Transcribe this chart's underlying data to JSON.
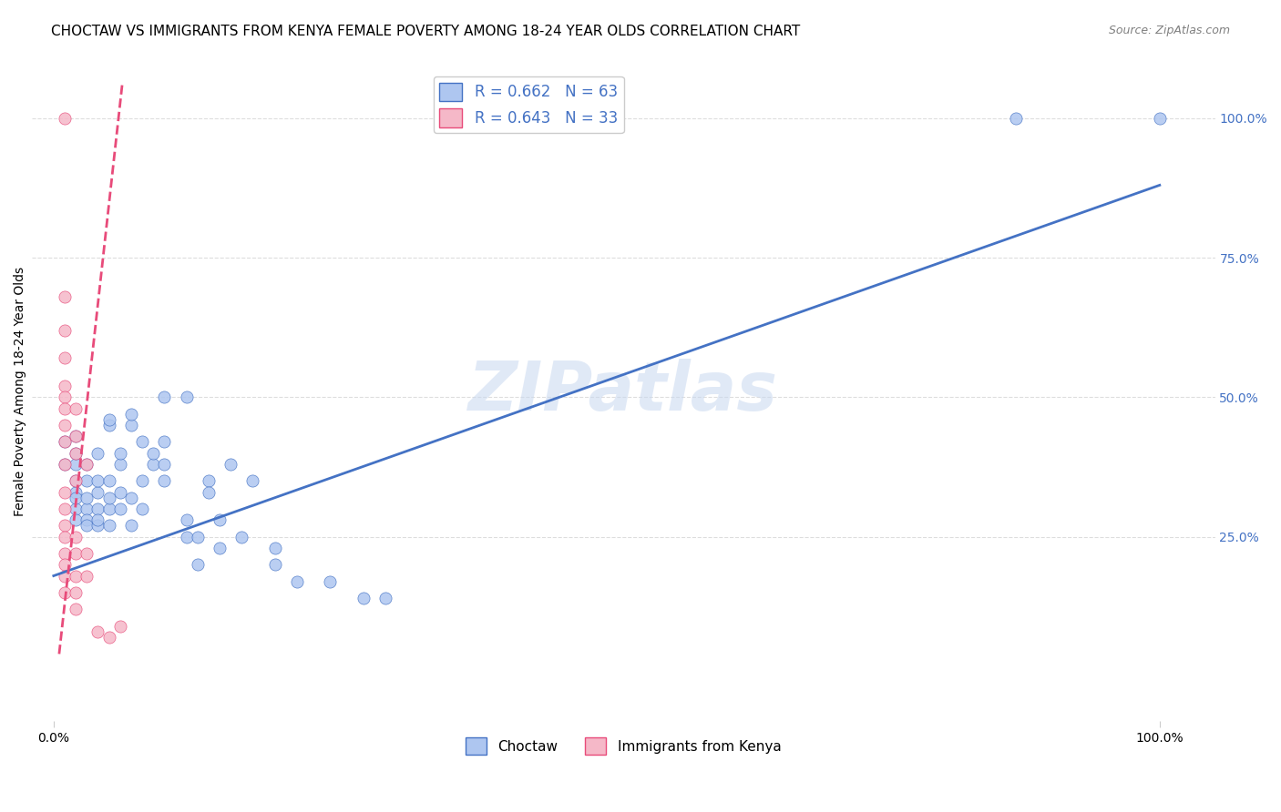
{
  "title": "CHOCTAW VS IMMIGRANTS FROM KENYA FEMALE POVERTY AMONG 18-24 YEAR OLDS CORRELATION CHART",
  "source": "Source: ZipAtlas.com",
  "ylabel": "Female Poverty Among 18-24 Year Olds",
  "watermark": "ZIPatlas",
  "r_blue": "0.662",
  "n_blue": "63",
  "r_pink": "0.643",
  "n_pink": "33",
  "choctaw_scatter": [
    [
      0.01,
      0.38
    ],
    [
      0.01,
      0.42
    ],
    [
      0.02,
      0.3
    ],
    [
      0.02,
      0.33
    ],
    [
      0.02,
      0.35
    ],
    [
      0.02,
      0.28
    ],
    [
      0.02,
      0.32
    ],
    [
      0.02,
      0.38
    ],
    [
      0.02,
      0.4
    ],
    [
      0.02,
      0.43
    ],
    [
      0.03,
      0.3
    ],
    [
      0.03,
      0.28
    ],
    [
      0.03,
      0.27
    ],
    [
      0.03,
      0.32
    ],
    [
      0.03,
      0.35
    ],
    [
      0.03,
      0.38
    ],
    [
      0.04,
      0.27
    ],
    [
      0.04,
      0.3
    ],
    [
      0.04,
      0.28
    ],
    [
      0.04,
      0.33
    ],
    [
      0.04,
      0.35
    ],
    [
      0.04,
      0.4
    ],
    [
      0.05,
      0.27
    ],
    [
      0.05,
      0.3
    ],
    [
      0.05,
      0.32
    ],
    [
      0.05,
      0.35
    ],
    [
      0.05,
      0.45
    ],
    [
      0.05,
      0.46
    ],
    [
      0.06,
      0.3
    ],
    [
      0.06,
      0.33
    ],
    [
      0.06,
      0.38
    ],
    [
      0.06,
      0.4
    ],
    [
      0.07,
      0.27
    ],
    [
      0.07,
      0.32
    ],
    [
      0.07,
      0.45
    ],
    [
      0.07,
      0.47
    ],
    [
      0.08,
      0.3
    ],
    [
      0.08,
      0.35
    ],
    [
      0.08,
      0.42
    ],
    [
      0.09,
      0.38
    ],
    [
      0.09,
      0.4
    ],
    [
      0.1,
      0.35
    ],
    [
      0.1,
      0.38
    ],
    [
      0.1,
      0.42
    ],
    [
      0.1,
      0.5
    ],
    [
      0.12,
      0.25
    ],
    [
      0.12,
      0.28
    ],
    [
      0.12,
      0.5
    ],
    [
      0.13,
      0.25
    ],
    [
      0.13,
      0.2
    ],
    [
      0.14,
      0.35
    ],
    [
      0.14,
      0.33
    ],
    [
      0.15,
      0.28
    ],
    [
      0.15,
      0.23
    ],
    [
      0.16,
      0.38
    ],
    [
      0.17,
      0.25
    ],
    [
      0.18,
      0.35
    ],
    [
      0.2,
      0.2
    ],
    [
      0.2,
      0.23
    ],
    [
      0.22,
      0.17
    ],
    [
      0.25,
      0.17
    ],
    [
      0.28,
      0.14
    ],
    [
      0.3,
      0.14
    ],
    [
      0.87,
      1.0
    ],
    [
      1.0,
      1.0
    ]
  ],
  "kenya_scatter": [
    [
      0.01,
      1.0
    ],
    [
      0.01,
      0.68
    ],
    [
      0.01,
      0.62
    ],
    [
      0.01,
      0.57
    ],
    [
      0.01,
      0.52
    ],
    [
      0.01,
      0.5
    ],
    [
      0.01,
      0.48
    ],
    [
      0.01,
      0.45
    ],
    [
      0.01,
      0.42
    ],
    [
      0.01,
      0.38
    ],
    [
      0.01,
      0.33
    ],
    [
      0.01,
      0.3
    ],
    [
      0.01,
      0.27
    ],
    [
      0.01,
      0.25
    ],
    [
      0.01,
      0.22
    ],
    [
      0.01,
      0.2
    ],
    [
      0.01,
      0.18
    ],
    [
      0.01,
      0.15
    ],
    [
      0.02,
      0.48
    ],
    [
      0.02,
      0.43
    ],
    [
      0.02,
      0.4
    ],
    [
      0.02,
      0.35
    ],
    [
      0.02,
      0.25
    ],
    [
      0.02,
      0.22
    ],
    [
      0.02,
      0.18
    ],
    [
      0.02,
      0.15
    ],
    [
      0.02,
      0.12
    ],
    [
      0.03,
      0.38
    ],
    [
      0.03,
      0.22
    ],
    [
      0.03,
      0.18
    ],
    [
      0.04,
      0.08
    ],
    [
      0.05,
      0.07
    ],
    [
      0.06,
      0.09
    ]
  ],
  "choctaw_line_x": [
    0.0,
    1.0
  ],
  "choctaw_line_y": [
    0.18,
    0.88
  ],
  "kenya_line_x": [
    0.005,
    0.062
  ],
  "kenya_line_y": [
    0.04,
    1.06
  ],
  "scatter_color_choctaw": "#aec6f0",
  "scatter_color_kenya": "#f5b8c8",
  "scatter_edge_choctaw": "#4472c4",
  "scatter_edge_kenya": "#e84b7a",
  "line_color_choctaw": "#4472c4",
  "line_color_kenya": "#e84b7a",
  "background_color": "#ffffff",
  "grid_color": "#dddddd",
  "right_axis_color": "#4472c4",
  "title_fontsize": 11,
  "axis_label_fontsize": 10,
  "tick_fontsize": 10,
  "legend_fontsize": 12,
  "xlim": [
    -0.02,
    1.05
  ],
  "ylim": [
    -0.08,
    1.1
  ],
  "right_yticks": [
    0.25,
    0.5,
    0.75,
    1.0
  ],
  "right_yticklabels": [
    "25.0%",
    "50.0%",
    "75.0%",
    "100.0%"
  ],
  "bottom_legend_labels": [
    "Choctaw",
    "Immigrants from Kenya"
  ]
}
